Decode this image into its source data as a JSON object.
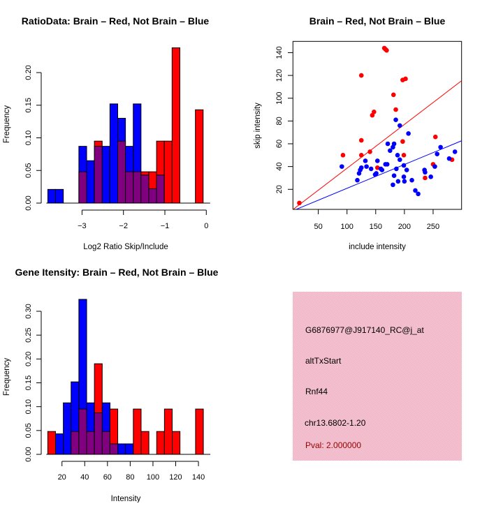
{
  "colors": {
    "red": "#ff0000",
    "blue": "#0000ff",
    "overlap": "#800080",
    "pval": "#990000",
    "panel": "#f4c4d0"
  },
  "chart_data": [
    {
      "type": "bar",
      "title": "RatioData: Brain – Red, Not Brain – Blue",
      "xlabel": "Log2 Ratio Skip/Include",
      "ylabel": "Frequency",
      "bin_start": -3.826,
      "bin_width": 0.1875,
      "xticks": [
        -3,
        -2,
        -1,
        0
      ],
      "xtick_labels": [
        "−3",
        "−2",
        "−1",
        "0"
      ],
      "yticks": [
        0,
        0.05,
        0.1,
        0.15,
        0.2
      ],
      "ytick_labels": [
        "0.00",
        "0.05",
        "0.10",
        "0.15",
        "0.20"
      ],
      "series": [
        {
          "name": "Not Brain",
          "color": "blue",
          "values": [
            0.021,
            0.021,
            0,
            0,
            0.087,
            0.065,
            0.087,
            0.087,
            0.152,
            0.13,
            0.087,
            0.152,
            0.043,
            0.022,
            0.043,
            0,
            0,
            0,
            0,
            0
          ]
        },
        {
          "name": "Brain",
          "color": "red",
          "values": [
            0,
            0,
            0,
            0,
            0.048,
            0,
            0.095,
            0,
            0,
            0.095,
            0.048,
            0.048,
            0.048,
            0.048,
            0.095,
            0.095,
            0.238,
            0,
            0,
            0.143
          ]
        }
      ]
    },
    {
      "type": "scatter",
      "title": "Brain – Red, Not Brain – Blue",
      "xlabel": "include intensity",
      "ylabel": "skip intensity",
      "xlim": [
        5.8,
        299.5
      ],
      "ylim": [
        2.4,
        150
      ],
      "xticks": [
        50,
        100,
        150,
        200,
        250
      ],
      "xtick_labels": [
        "50",
        "100",
        "150",
        "200",
        "250"
      ],
      "yticks": [
        20,
        40,
        60,
        80,
        100,
        120,
        140
      ],
      "ytick_labels": [
        "20",
        "40",
        "60",
        "80",
        "100",
        "120",
        "140"
      ],
      "lines": [
        {
          "color": "red",
          "slope": 0.385
        },
        {
          "color": "blue",
          "slope": 0.209
        }
      ],
      "series": [
        {
          "name": "Brain",
          "color": "red",
          "points": [
            [
              17,
              8
            ],
            [
              93,
              50
            ],
            [
              125,
              120
            ],
            [
              125,
              63
            ],
            [
              125,
              50
            ],
            [
              140,
              53
            ],
            [
              144,
              85
            ],
            [
              147,
              88
            ],
            [
              153,
              39
            ],
            [
              165,
              144
            ],
            [
              167,
              143
            ],
            [
              169,
              142
            ],
            [
              181,
              103
            ],
            [
              185,
              90
            ],
            [
              197,
              116
            ],
            [
              202,
              117
            ],
            [
              197,
              62
            ],
            [
              199,
              50
            ],
            [
              236,
              30
            ],
            [
              250,
              42
            ],
            [
              254,
              66
            ],
            [
              283,
              46
            ]
          ]
        },
        {
          "name": "Not Brain",
          "color": "blue",
          "points": [
            [
              91,
              40
            ],
            [
              118,
              28
            ],
            [
              121,
              34
            ],
            [
              123,
              37
            ],
            [
              125,
              39
            ],
            [
              132,
              45
            ],
            [
              134,
              40
            ],
            [
              142,
              38
            ],
            [
              149,
              33
            ],
            [
              151,
              34
            ],
            [
              153,
              45
            ],
            [
              159,
              38
            ],
            [
              161,
              37
            ],
            [
              167,
              42
            ],
            [
              170,
              42
            ],
            [
              171,
              60
            ],
            [
              175,
              54
            ],
            [
              180,
              57
            ],
            [
              182,
              60
            ],
            [
              180,
              24
            ],
            [
              182,
              32
            ],
            [
              185,
              81
            ],
            [
              186,
              38
            ],
            [
              188,
              50
            ],
            [
              189,
              27
            ],
            [
              192,
              46
            ],
            [
              192,
              76
            ],
            [
              199,
              41
            ],
            [
              199,
              31
            ],
            [
              200,
              27
            ],
            [
              204,
              37
            ],
            [
              207,
              69
            ],
            [
              213,
              28
            ],
            [
              219,
              19
            ],
            [
              224,
              16
            ],
            [
              235,
              37
            ],
            [
              236,
              35
            ],
            [
              246,
              31
            ],
            [
              253,
              40
            ],
            [
              257,
              51
            ],
            [
              263,
              57
            ],
            [
              278,
              47
            ],
            [
              288,
              53
            ]
          ]
        }
      ]
    },
    {
      "type": "bar",
      "title": "Gene Itensity: Brain – Red, Not Brain – Blue",
      "xlabel": "Intensity",
      "ylabel": "Frequency",
      "bin_start": 7.5,
      "bin_width": 6.84,
      "xticks": [
        20,
        40,
        60,
        80,
        100,
        120,
        140
      ],
      "xtick_labels": [
        "20",
        "40",
        "60",
        "80",
        "100",
        "120",
        "140"
      ],
      "yticks": [
        0,
        0.05,
        0.1,
        0.15,
        0.2,
        0.25,
        0.3
      ],
      "ytick_labels": [
        "0.00",
        "0.05",
        "0.10",
        "0.15",
        "0.20",
        "0.25",
        "0.30"
      ],
      "series": [
        {
          "name": "Not Brain",
          "color": "blue",
          "values": [
            0,
            0.043,
            0.108,
            0.152,
            0.325,
            0.108,
            0.087,
            0.108,
            0.022,
            0.022,
            0.022,
            0,
            0,
            0,
            0,
            0,
            0,
            0,
            0,
            0
          ]
        },
        {
          "name": "Brain",
          "color": "red",
          "values": [
            0.048,
            0,
            0,
            0.048,
            0.095,
            0.048,
            0.19,
            0.048,
            0.095,
            0,
            0,
            0.095,
            0.048,
            0,
            0.048,
            0.095,
            0.048,
            0,
            0,
            0.095
          ]
        }
      ]
    }
  ],
  "info_panel": {
    "probe": "G6876977@J917140_RC@j_at",
    "event": "altTxStart",
    "gene": "Rnf44",
    "location": "chr13.6802-1.20",
    "pval": "Pval: 2.000000"
  }
}
